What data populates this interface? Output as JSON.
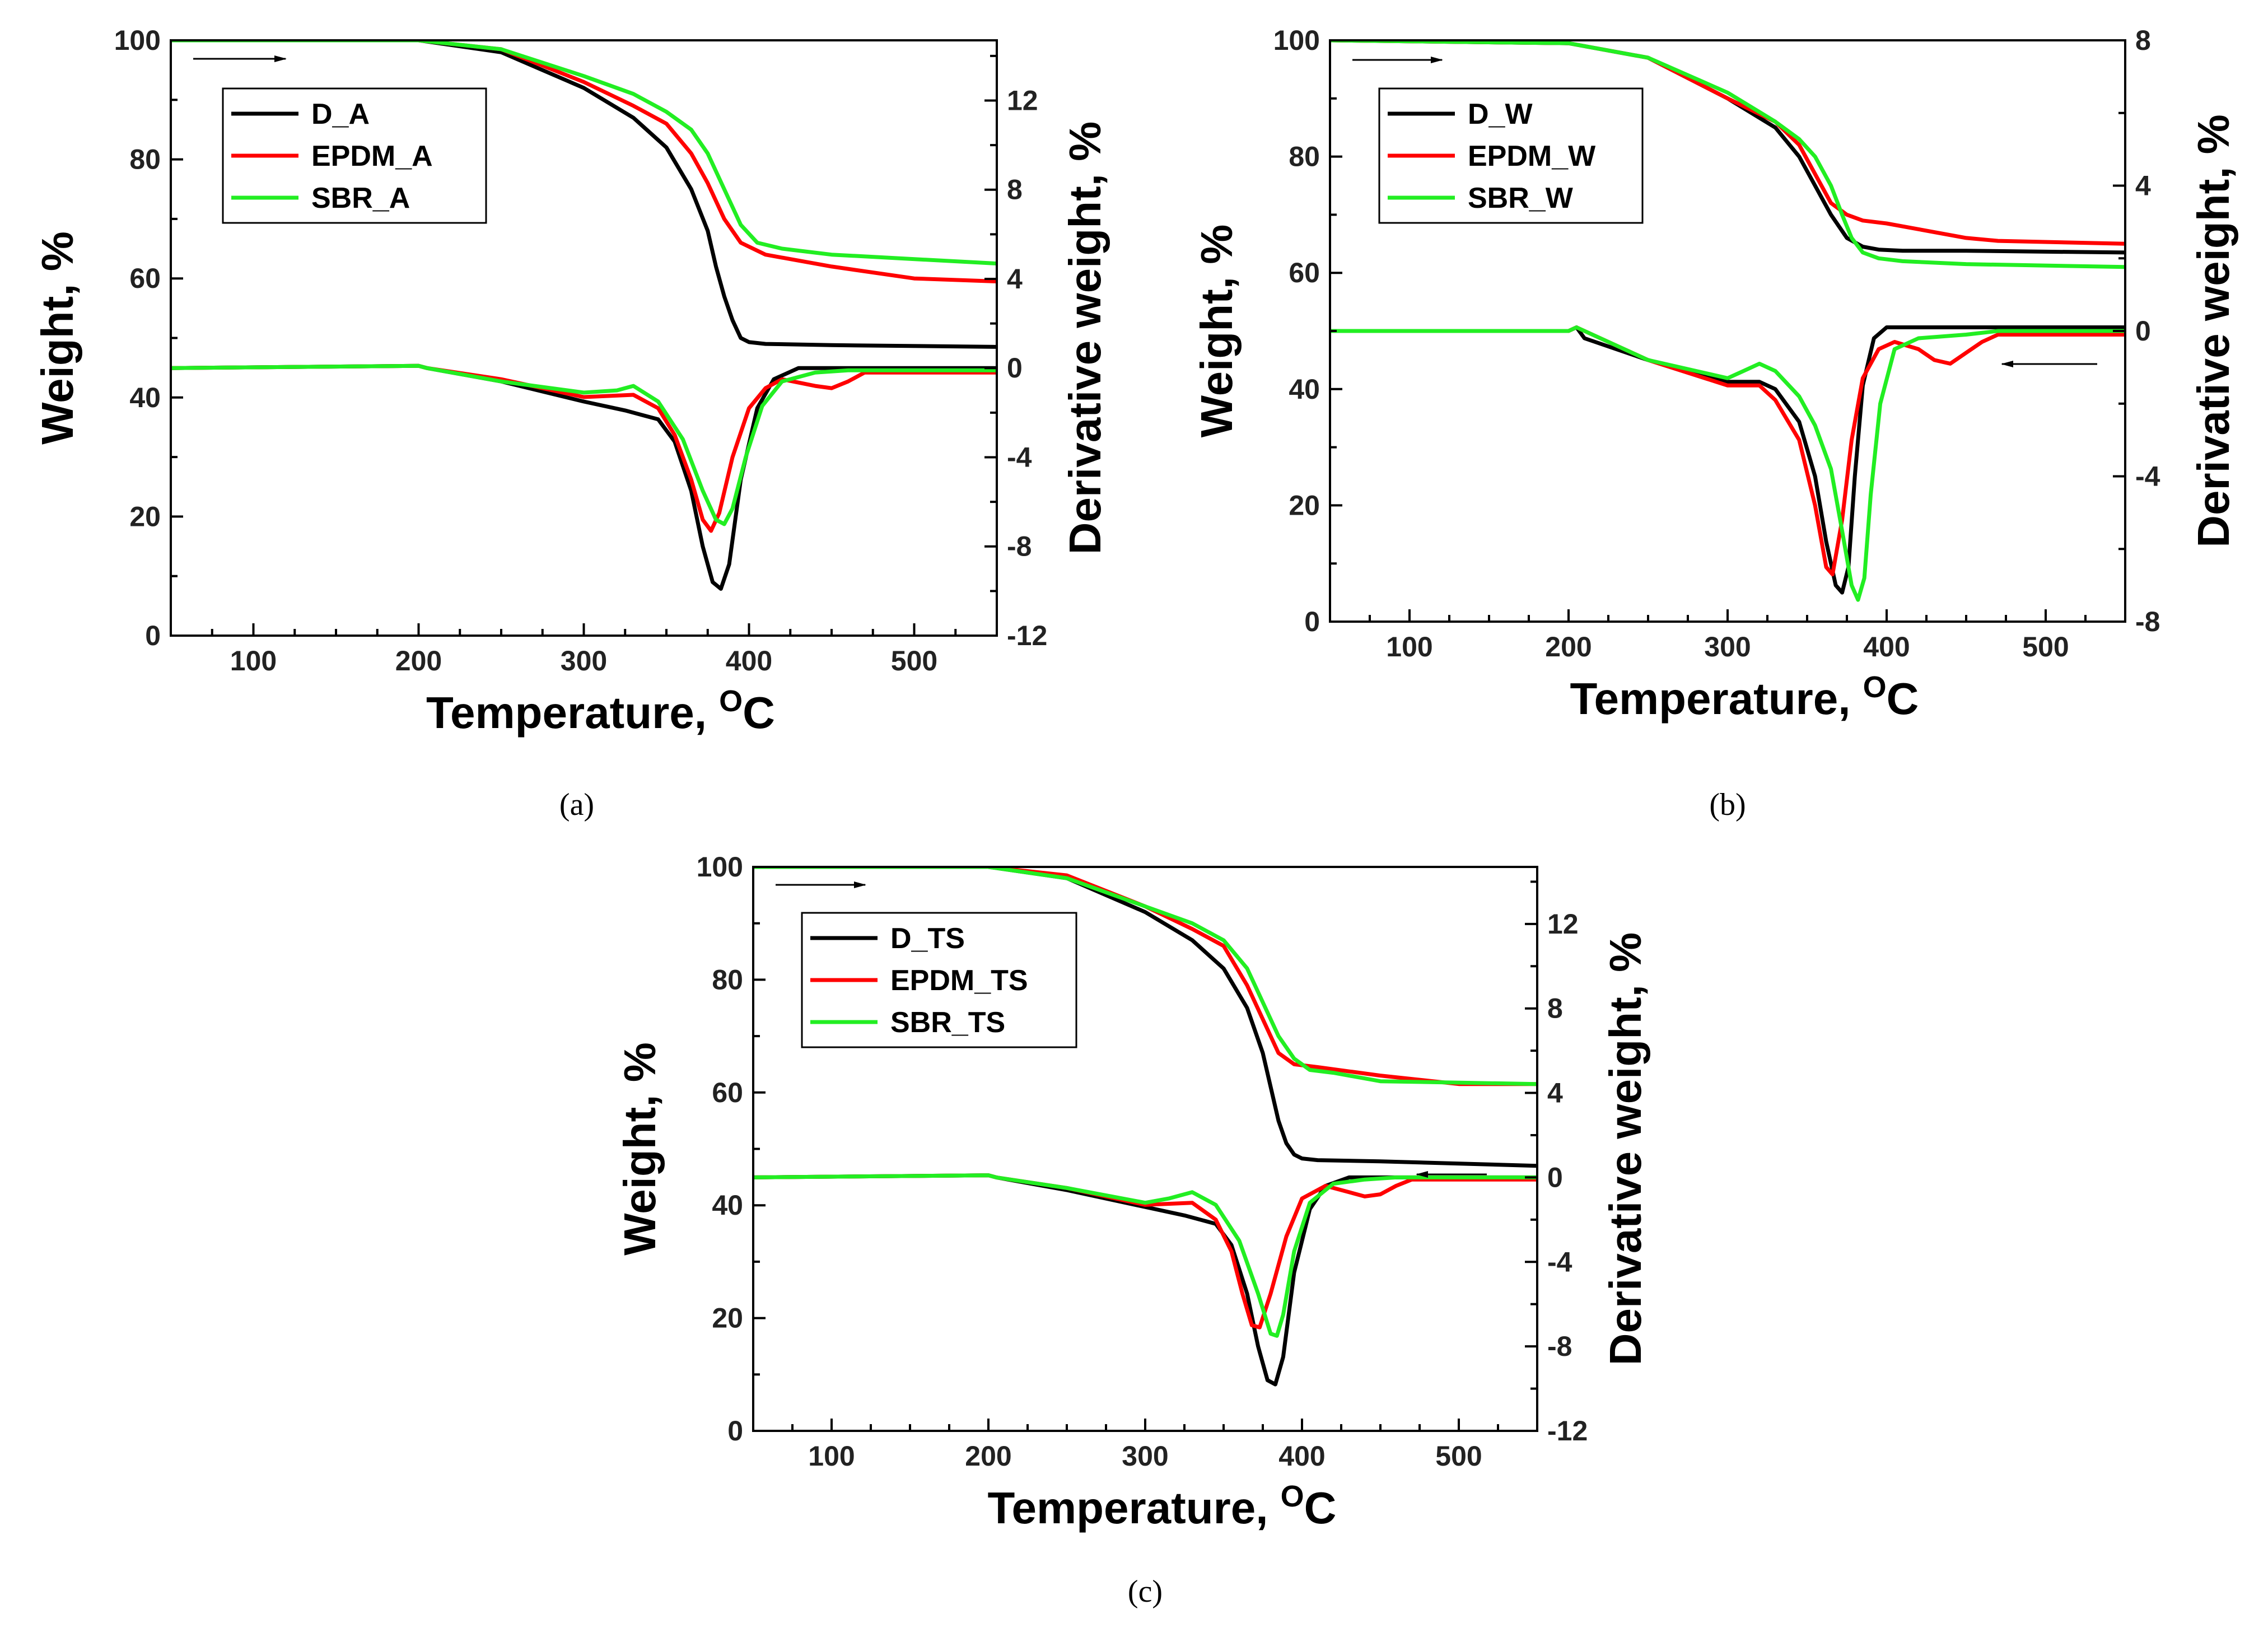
{
  "figure": {
    "x_title": "Temperature, ",
    "x_title_sup": "O",
    "x_title_unit": "C",
    "left_title": "Weight, %",
    "right_title": "Derivative weight, %",
    "colors": {
      "D": "#000000",
      "EPDM": "#ff0000",
      "SBR": "#22ee22"
    }
  },
  "chart_data": [
    {
      "type": "line",
      "panel": "a",
      "caption": "(a)",
      "xlim": [
        50,
        550
      ],
      "ylim_left": [
        0,
        100
      ],
      "ylim_right": [
        -12,
        14.7
      ],
      "x_ticks": [
        "100",
        "200",
        "300",
        "400",
        "500"
      ],
      "left_ticks": [
        "0",
        "20",
        "40",
        "60",
        "80",
        "100"
      ],
      "right_ticks": [
        "-12",
        "-8",
        "-4",
        "0",
        "4",
        "8",
        "12"
      ],
      "legend_position": "top-left",
      "annotations": [
        "arrow right pointing at weight curves (left axis)"
      ],
      "series": [
        {
          "name": "D_A",
          "color": "#000000",
          "axis": "left",
          "x": [
            50,
            200,
            250,
            300,
            330,
            350,
            365,
            375,
            380,
            385,
            390,
            395,
            400,
            410,
            450,
            550
          ],
          "y": [
            100,
            100,
            98,
            92,
            87,
            82,
            75,
            68,
            62,
            57,
            53,
            50,
            49.3,
            49,
            48.8,
            48.5
          ]
        },
        {
          "name": "EPDM_A",
          "color": "#ff0000",
          "axis": "left",
          "x": [
            50,
            200,
            250,
            300,
            330,
            350,
            365,
            375,
            385,
            395,
            410,
            450,
            500,
            550
          ],
          "y": [
            100,
            100,
            98.5,
            93,
            89,
            86,
            81,
            76,
            70,
            66,
            64,
            62,
            60,
            59.5
          ]
        },
        {
          "name": "SBR_A",
          "color": "#22ee22",
          "axis": "left",
          "x": [
            50,
            200,
            250,
            300,
            330,
            350,
            365,
            375,
            385,
            395,
            405,
            420,
            450,
            550
          ],
          "y": [
            100,
            100,
            98.5,
            94,
            91,
            88,
            85,
            81,
            75,
            69,
            66,
            65,
            64,
            62.5
          ]
        },
        {
          "name": "D_A derivative",
          "color": "#000000",
          "axis": "right",
          "x": [
            50,
            200,
            205,
            250,
            300,
            325,
            345,
            355,
            365,
            372,
            378,
            383,
            388,
            395,
            405,
            415,
            430,
            550
          ],
          "y": [
            0,
            0.1,
            0,
            -0.6,
            -1.5,
            -1.9,
            -2.3,
            -3.3,
            -5.5,
            -8,
            -9.6,
            -9.9,
            -8.8,
            -5,
            -1.8,
            -0.5,
            0,
            0
          ]
        },
        {
          "name": "EPDM_A derivative",
          "color": "#ff0000",
          "axis": "right",
          "x": [
            50,
            200,
            205,
            250,
            300,
            330,
            345,
            355,
            365,
            372,
            377,
            382,
            390,
            400,
            410,
            420,
            440,
            450,
            460,
            470,
            550
          ],
          "y": [
            0,
            0.1,
            0,
            -0.5,
            -1.3,
            -1.2,
            -1.8,
            -3,
            -5,
            -6.8,
            -7.3,
            -6.5,
            -4,
            -1.8,
            -0.9,
            -0.5,
            -0.8,
            -0.9,
            -0.6,
            -0.2,
            -0.2
          ]
        },
        {
          "name": "SBR_A derivative",
          "color": "#22ee22",
          "axis": "right",
          "x": [
            50,
            200,
            205,
            250,
            300,
            320,
            330,
            345,
            360,
            372,
            380,
            385,
            390,
            398,
            408,
            420,
            440,
            460,
            550
          ],
          "y": [
            0,
            0.1,
            0,
            -0.6,
            -1.1,
            -1,
            -0.8,
            -1.5,
            -3.2,
            -5.5,
            -6.8,
            -7,
            -6.3,
            -4,
            -1.7,
            -0.6,
            -0.2,
            -0.1,
            -0.1
          ]
        }
      ]
    },
    {
      "type": "line",
      "panel": "b",
      "caption": "(b)",
      "xlim": [
        50,
        550
      ],
      "ylim_left": [
        0,
        100
      ],
      "ylim_right": [
        -8,
        8
      ],
      "x_ticks": [
        "100",
        "200",
        "300",
        "400",
        "500"
      ],
      "left_ticks": [
        "0",
        "20",
        "40",
        "60",
        "80",
        "100"
      ],
      "right_ticks": [
        "-8",
        "-4",
        "0",
        "4",
        "8"
      ],
      "legend_position": "top-left",
      "annotations": [
        "arrow right pointing at weight curves (left axis)",
        "arrow left pointing at derivative curves (right axis)"
      ],
      "series": [
        {
          "name": "D_W",
          "color": "#000000",
          "axis": "left",
          "x": [
            50,
            200,
            250,
            300,
            330,
            345,
            355,
            365,
            375,
            385,
            395,
            410,
            450,
            550
          ],
          "y": [
            100,
            99.5,
            97,
            90,
            85,
            80,
            75,
            70,
            66,
            64.5,
            64,
            63.8,
            63.8,
            63.5
          ]
        },
        {
          "name": "EPDM_W",
          "color": "#ff0000",
          "axis": "left",
          "x": [
            50,
            200,
            250,
            300,
            330,
            345,
            355,
            365,
            375,
            385,
            400,
            420,
            450,
            470,
            550
          ],
          "y": [
            100,
            99.5,
            97,
            90,
            86,
            82,
            77,
            72,
            70,
            69,
            68.5,
            67.5,
            66,
            65.5,
            65
          ]
        },
        {
          "name": "SBR_W",
          "color": "#22ee22",
          "axis": "left",
          "x": [
            50,
            200,
            250,
            300,
            330,
            345,
            355,
            365,
            372,
            378,
            385,
            395,
            410,
            450,
            550
          ],
          "y": [
            100,
            99.5,
            97,
            91,
            86,
            83,
            80,
            75,
            70,
            66,
            63.5,
            62.5,
            62,
            61.5,
            61
          ]
        },
        {
          "name": "D_W derivative",
          "color": "#000000",
          "axis": "right",
          "x": [
            50,
            200,
            205,
            210,
            250,
            300,
            320,
            330,
            345,
            355,
            362,
            368,
            372,
            376,
            380,
            385,
            392,
            400,
            430,
            550
          ],
          "y": [
            0,
            0,
            0.1,
            -0.2,
            -0.8,
            -1.4,
            -1.4,
            -1.6,
            -2.5,
            -4,
            -5.8,
            -7,
            -7.2,
            -6.5,
            -4,
            -1.5,
            -0.2,
            0.1,
            0.1,
            0.1
          ]
        },
        {
          "name": "EPDM_W derivative",
          "color": "#ff0000",
          "axis": "right",
          "x": [
            50,
            200,
            205,
            250,
            300,
            320,
            330,
            345,
            355,
            362,
            366,
            372,
            378,
            385,
            395,
            405,
            420,
            430,
            440,
            450,
            460,
            470,
            550
          ],
          "y": [
            0,
            0,
            0.1,
            -0.8,
            -1.5,
            -1.5,
            -1.9,
            -3,
            -4.8,
            -6.5,
            -6.7,
            -5.2,
            -3,
            -1.3,
            -0.5,
            -0.3,
            -0.5,
            -0.8,
            -0.9,
            -0.6,
            -0.3,
            -0.1,
            -0.1
          ]
        },
        {
          "name": "SBR_W derivative",
          "color": "#22ee22",
          "axis": "right",
          "x": [
            50,
            200,
            205,
            250,
            300,
            310,
            320,
            330,
            345,
            355,
            365,
            372,
            378,
            382,
            386,
            390,
            396,
            405,
            420,
            450,
            470,
            550
          ],
          "y": [
            0,
            0,
            0.1,
            -0.8,
            -1.3,
            -1.1,
            -0.9,
            -1.1,
            -1.8,
            -2.6,
            -3.8,
            -5.5,
            -7,
            -7.4,
            -6.8,
            -4.5,
            -2,
            -0.5,
            -0.2,
            -0.1,
            0,
            0
          ]
        }
      ]
    },
    {
      "type": "line",
      "panel": "c",
      "caption": "(c)",
      "xlim": [
        50,
        550
      ],
      "ylim_left": [
        0,
        100
      ],
      "ylim_right": [
        -12,
        14.7
      ],
      "x_ticks": [
        "100",
        "200",
        "300",
        "400",
        "500"
      ],
      "left_ticks": [
        "0",
        "20",
        "40",
        "60",
        "80",
        "100"
      ],
      "right_ticks": [
        "-12",
        "-8",
        "-4",
        "0",
        "4",
        "8",
        "12"
      ],
      "legend_position": "top-left",
      "annotations": [
        "arrow right pointing at weight curves (left axis)",
        "arrow left pointing at derivative curves (right axis)"
      ],
      "series": [
        {
          "name": "D_TS",
          "color": "#000000",
          "axis": "left",
          "x": [
            50,
            200,
            250,
            300,
            330,
            350,
            365,
            375,
            380,
            385,
            390,
            395,
            400,
            410,
            450,
            550
          ],
          "y": [
            100,
            100,
            98,
            92,
            87,
            82,
            75,
            67,
            61,
            55,
            51,
            49,
            48.3,
            48,
            47.8,
            47
          ]
        },
        {
          "name": "EPDM_TS",
          "color": "#ff0000",
          "axis": "left",
          "x": [
            50,
            200,
            250,
            300,
            330,
            350,
            365,
            375,
            385,
            395,
            410,
            450,
            500,
            550
          ],
          "y": [
            100,
            100,
            98.5,
            93,
            89,
            86,
            79,
            73,
            67,
            65,
            64.5,
            63,
            61.5,
            61.5
          ]
        },
        {
          "name": "SBR_TS",
          "color": "#22ee22",
          "axis": "left",
          "x": [
            50,
            200,
            250,
            300,
            330,
            350,
            365,
            375,
            385,
            395,
            405,
            420,
            450,
            550
          ],
          "y": [
            100,
            100,
            98,
            93,
            90,
            87,
            82,
            76,
            70,
            66,
            64,
            63.5,
            62,
            61.5
          ]
        },
        {
          "name": "D_TS derivative",
          "color": "#000000",
          "axis": "right",
          "x": [
            50,
            200,
            205,
            250,
            300,
            325,
            345,
            355,
            365,
            372,
            378,
            383,
            388,
            395,
            405,
            415,
            430,
            550
          ],
          "y": [
            0,
            0.1,
            0,
            -0.6,
            -1.4,
            -1.8,
            -2.2,
            -3.2,
            -5.5,
            -8,
            -9.6,
            -9.8,
            -8.5,
            -4.5,
            -1.5,
            -0.4,
            0,
            0
          ]
        },
        {
          "name": "EPDM_TS derivative",
          "color": "#ff0000",
          "axis": "right",
          "x": [
            50,
            200,
            205,
            250,
            300,
            330,
            345,
            355,
            362,
            368,
            373,
            380,
            390,
            400,
            415,
            430,
            440,
            450,
            460,
            470,
            550
          ],
          "y": [
            0,
            0.1,
            0,
            -0.5,
            -1.3,
            -1.2,
            -2,
            -3.5,
            -5.5,
            -7,
            -7.1,
            -5.5,
            -2.8,
            -1,
            -0.4,
            -0.7,
            -0.9,
            -0.8,
            -0.4,
            -0.1,
            -0.1
          ]
        },
        {
          "name": "SBR_TS derivative",
          "color": "#22ee22",
          "axis": "right",
          "x": [
            50,
            200,
            205,
            250,
            300,
            315,
            330,
            345,
            360,
            372,
            380,
            384,
            388,
            395,
            405,
            420,
            440,
            460,
            550
          ],
          "y": [
            0,
            0.1,
            0,
            -0.5,
            -1.2,
            -1,
            -0.7,
            -1.3,
            -3,
            -5.5,
            -7.4,
            -7.5,
            -6.5,
            -3.5,
            -1.2,
            -0.3,
            -0.1,
            0,
            0
          ]
        }
      ]
    }
  ]
}
